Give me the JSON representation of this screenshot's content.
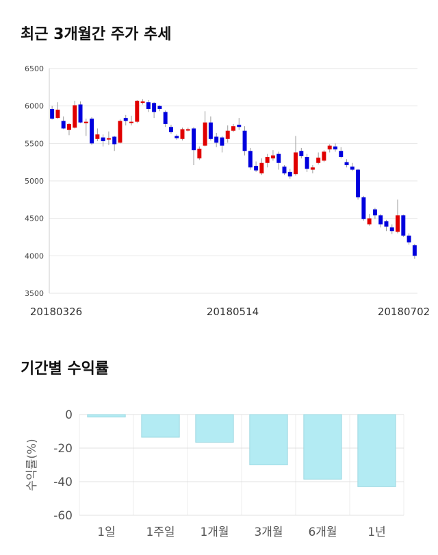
{
  "section1": {
    "title": "최근 3개월간 주가 추세"
  },
  "section2": {
    "title": "기간별 수익률"
  },
  "chart_data": [
    {
      "type": "candlestick",
      "title": "최근 3개월간 주가 추세",
      "ylim": [
        3500,
        6500
      ],
      "y_ticks": [
        "6500",
        "6000",
        "5500",
        "5000",
        "4500",
        "4000",
        "3500"
      ],
      "x_tick_labels": [
        "20180326",
        "20180514",
        "20180702"
      ],
      "grid": true,
      "up_color": "#e00000",
      "down_color": "#0000dd",
      "candles": [
        [
          5960,
          5830,
          6000,
          5820
        ],
        [
          5840,
          5950,
          6050,
          5830
        ],
        [
          5800,
          5700,
          5860,
          5690
        ],
        [
          5680,
          5760,
          5770,
          5610
        ],
        [
          5710,
          6010,
          6070,
          5700
        ],
        [
          6020,
          5780,
          6060,
          5770
        ],
        [
          5770,
          5790,
          5830,
          5600
        ],
        [
          5830,
          5500,
          5850,
          5480
        ],
        [
          5560,
          5620,
          5700,
          5530
        ],
        [
          5580,
          5530,
          5620,
          5460
        ],
        [
          5570,
          5570,
          5660,
          5480
        ],
        [
          5590,
          5490,
          5600,
          5400
        ],
        [
          5510,
          5800,
          5820,
          5500
        ],
        [
          5840,
          5800,
          5880,
          5740
        ],
        [
          5790,
          5790,
          5870,
          5740
        ],
        [
          5790,
          6070,
          6080,
          5770
        ],
        [
          6050,
          6060,
          6090,
          6020
        ],
        [
          6050,
          5960,
          6080,
          5920
        ],
        [
          6040,
          5920,
          6050,
          5840
        ],
        [
          6000,
          5960,
          6010,
          5930
        ],
        [
          5920,
          5760,
          5940,
          5720
        ],
        [
          5720,
          5650,
          5750,
          5630
        ],
        [
          5600,
          5570,
          5620,
          5550
        ],
        [
          5560,
          5690,
          5710,
          5540
        ],
        [
          5680,
          5690,
          5710,
          5660
        ],
        [
          5700,
          5410,
          5720,
          5210
        ],
        [
          5300,
          5430,
          5460,
          5280
        ],
        [
          5470,
          5780,
          5930,
          5460
        ],
        [
          5780,
          5560,
          5860,
          5540
        ],
        [
          5590,
          5510,
          5640,
          5450
        ],
        [
          5580,
          5470,
          5600,
          5380
        ],
        [
          5560,
          5670,
          5740,
          5510
        ],
        [
          5670,
          5730,
          5760,
          5650
        ],
        [
          5750,
          5720,
          5840,
          5680
        ],
        [
          5670,
          5400,
          5730,
          5340
        ],
        [
          5400,
          5180,
          5440,
          5150
        ],
        [
          5200,
          5140,
          5260,
          5120
        ],
        [
          5100,
          5240,
          5300,
          5080
        ],
        [
          5240,
          5320,
          5360,
          5180
        ],
        [
          5300,
          5340,
          5410,
          5270
        ],
        [
          5360,
          5240,
          5390,
          5150
        ],
        [
          5190,
          5100,
          5210,
          5080
        ],
        [
          5120,
          5060,
          5160,
          5030
        ],
        [
          5090,
          5380,
          5600,
          5070
        ],
        [
          5400,
          5330,
          5440,
          5300
        ],
        [
          5320,
          5160,
          5360,
          5120
        ],
        [
          5150,
          5180,
          5210,
          5100
        ],
        [
          5240,
          5310,
          5380,
          5220
        ],
        [
          5270,
          5390,
          5410,
          5250
        ],
        [
          5420,
          5470,
          5490,
          5380
        ],
        [
          5460,
          5420,
          5500,
          5390
        ],
        [
          5400,
          5320,
          5450,
          5300
        ],
        [
          5250,
          5210,
          5290,
          5180
        ],
        [
          5190,
          5150,
          5240,
          5130
        ],
        [
          5150,
          4780,
          5160,
          4750
        ],
        [
          4780,
          4490,
          4800,
          4470
        ],
        [
          4420,
          4500,
          4560,
          4400
        ],
        [
          4620,
          4540,
          4640,
          4490
        ],
        [
          4540,
          4420,
          4560,
          4380
        ],
        [
          4460,
          4390,
          4480,
          4330
        ],
        [
          4380,
          4330,
          4420,
          4290
        ],
        [
          4320,
          4540,
          4750,
          4300
        ],
        [
          4540,
          4270,
          4550,
          4250
        ],
        [
          4270,
          4180,
          4300,
          4150
        ],
        [
          4140,
          4000,
          4160,
          3960
        ]
      ]
    },
    {
      "type": "bar",
      "title": "기간별 수익률",
      "categories": [
        "1일",
        "1주일",
        "1개월",
        "3개월",
        "6개월",
        "1년"
      ],
      "values": [
        -1.5,
        -13.5,
        -16.5,
        -30,
        -38.5,
        -43
      ],
      "ylabel": "수익률(%)",
      "ylim": [
        -60,
        0
      ],
      "y_ticks": [
        "0",
        "-20",
        "-40",
        "-60"
      ],
      "bar_color": "#b3ebf3"
    }
  ]
}
